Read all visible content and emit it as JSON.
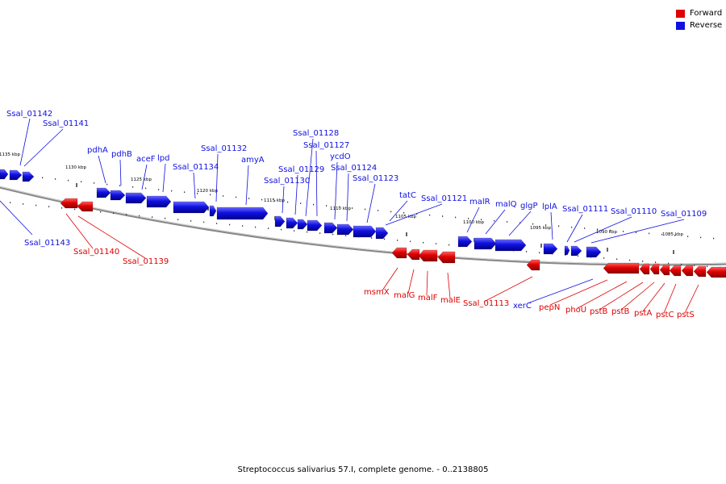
{
  "caption": "Streptococcus salivarius 57.I, complete genome. - 0..2138805",
  "colors": {
    "forward": "#e00000",
    "reverse": "#1010e0"
  },
  "legend": [
    {
      "label": "Forward",
      "strand": "forward"
    },
    {
      "label": "Reverse",
      "strand": "reverse"
    }
  ],
  "ticks": [
    {
      "label": "1135 kbp"
    },
    {
      "label": "1130 kbp"
    },
    {
      "label": "1125 kbp"
    },
    {
      "label": "1120 kbp"
    },
    {
      "label": "1115 kbp"
    },
    {
      "label": "1110 kbp"
    },
    {
      "label": "1105 kbp"
    },
    {
      "label": "1100 kbp"
    },
    {
      "label": "1095 kbp"
    },
    {
      "label": "1090 kbp"
    },
    {
      "label": "1085 kbp"
    }
  ],
  "genes": [
    {
      "name": "Ssal_01142",
      "strand": "reverse"
    },
    {
      "name": "Ssal_01141",
      "strand": "reverse"
    },
    {
      "name": "Ssal_01143",
      "strand": "reverse"
    },
    {
      "name": "Ssal_01140",
      "strand": "forward"
    },
    {
      "name": "Ssal_01139",
      "strand": "forward"
    },
    {
      "name": "pdhA",
      "strand": "reverse"
    },
    {
      "name": "pdhB",
      "strand": "reverse"
    },
    {
      "name": "aceF",
      "strand": "reverse"
    },
    {
      "name": "lpd",
      "strand": "reverse"
    },
    {
      "name": "Ssal_01134",
      "strand": "reverse"
    },
    {
      "name": "Ssal_01132",
      "strand": "reverse"
    },
    {
      "name": "amyA",
      "strand": "reverse"
    },
    {
      "name": "Ssal_01130",
      "strand": "reverse"
    },
    {
      "name": "Ssal_01129",
      "strand": "reverse"
    },
    {
      "name": "Ssal_01128",
      "strand": "reverse"
    },
    {
      "name": "Ssal_01127",
      "strand": "reverse"
    },
    {
      "name": "ycdO",
      "strand": "reverse"
    },
    {
      "name": "Ssal_01124",
      "strand": "reverse"
    },
    {
      "name": "Ssal_01123",
      "strand": "reverse"
    },
    {
      "name": "tatC",
      "strand": "reverse"
    },
    {
      "name": "Ssal_01121",
      "strand": "reverse"
    },
    {
      "name": "malR",
      "strand": "reverse"
    },
    {
      "name": "malQ",
      "strand": "reverse"
    },
    {
      "name": "glgP",
      "strand": "reverse"
    },
    {
      "name": "lplA",
      "strand": "reverse"
    },
    {
      "name": "Ssal_01111",
      "strand": "reverse"
    },
    {
      "name": "Ssal_01110",
      "strand": "reverse"
    },
    {
      "name": "Ssal_01109",
      "strand": "reverse"
    },
    {
      "name": "msmX",
      "strand": "forward"
    },
    {
      "name": "malG",
      "strand": "forward"
    },
    {
      "name": "malF",
      "strand": "forward"
    },
    {
      "name": "malE",
      "strand": "forward"
    },
    {
      "name": "Ssal_01113",
      "strand": "forward"
    },
    {
      "name": "xerC",
      "strand": "reverse"
    },
    {
      "name": "pepN",
      "strand": "forward"
    },
    {
      "name": "phoU",
      "strand": "forward"
    },
    {
      "name": "pstB",
      "strand": "forward"
    },
    {
      "name": "pstB",
      "strand": "forward"
    },
    {
      "name": "pstA",
      "strand": "forward"
    },
    {
      "name": "pstC",
      "strand": "forward"
    },
    {
      "name": "pstS",
      "strand": "forward"
    }
  ]
}
